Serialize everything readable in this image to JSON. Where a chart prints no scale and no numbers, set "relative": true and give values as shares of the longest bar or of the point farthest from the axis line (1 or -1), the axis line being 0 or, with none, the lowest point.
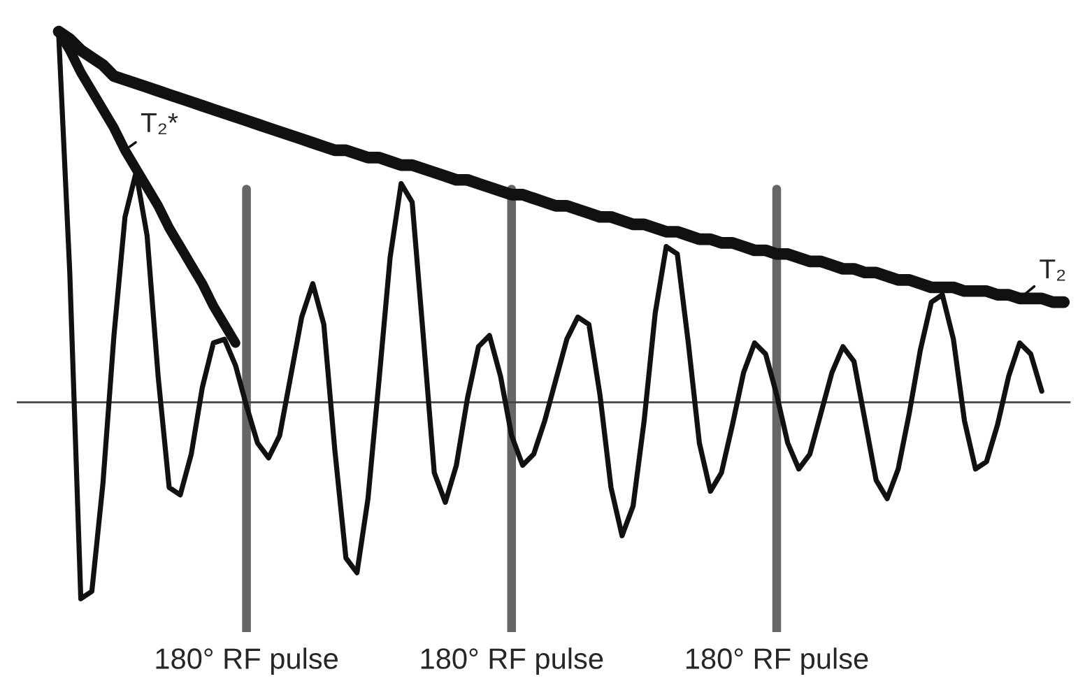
{
  "chart_data": {
    "type": "line",
    "relative": true,
    "tick_labels": "x",
    "grid": "x",
    "legend": false,
    "marker": "none",
    "line_style": "solid",
    "categories": [
      null,
      null,
      null,
      null,
      null,
      null,
      null,
      null,
      null,
      null,
      null,
      null,
      null,
      null,
      null,
      null,
      null,
      "180° RF pulse",
      null,
      null,
      null,
      null,
      null,
      null,
      null,
      null,
      null,
      null,
      null,
      null,
      null,
      null,
      null,
      null,
      null,
      null,
      null,
      null,
      null,
      null,
      null,
      "180° RF pulse",
      null,
      null,
      null,
      null,
      null,
      null,
      null,
      null,
      null,
      null,
      null,
      null,
      null,
      null,
      null,
      null,
      null,
      null,
      null,
      null,
      null,
      null,
      null,
      "180° RF pulse",
      null,
      null,
      null,
      null,
      null,
      null,
      null,
      null,
      null,
      null,
      null,
      null,
      null,
      null,
      null,
      null,
      null,
      null,
      null,
      null,
      null,
      null,
      null,
      null,
      null,
      null
    ],
    "series": [
      {
        "color": "#111111",
        "values": [
          0.99,
          0.35,
          -0.53,
          -0.51,
          -0.22,
          0.18,
          0.5,
          0.62,
          0.45,
          0.07,
          -0.23,
          -0.25,
          -0.14,
          0.04,
          0.16,
          0.17,
          0.1,
          -0.01,
          -0.11,
          -0.15,
          -0.09,
          0.07,
          0.23,
          0.32,
          0.21,
          -0.13,
          -0.42,
          -0.46,
          -0.26,
          0.06,
          0.39,
          0.59,
          0.54,
          0.18,
          -0.19,
          -0.27,
          -0.17,
          0.01,
          0.15,
          0.18,
          0.07,
          -0.09,
          -0.17,
          -0.14,
          -0.05,
          0.06,
          0.17,
          0.23,
          0.21,
          0.02,
          -0.23,
          -0.36,
          -0.28,
          -0.05,
          0.24,
          0.42,
          0.4,
          0.16,
          -0.11,
          -0.24,
          -0.19,
          -0.06,
          0.08,
          0.16,
          0.13,
          0.02,
          -0.11,
          -0.18,
          -0.14,
          -0.03,
          0.08,
          0.15,
          0.11,
          -0.05,
          -0.21,
          -0.26,
          -0.18,
          -0.03,
          0.14,
          0.27,
          0.29,
          0.17,
          -0.05,
          -0.18,
          -0.16,
          -0.06,
          0.07,
          0.16,
          0.13,
          0.03,
          null,
          null
        ]
      },
      {
        "name": "T₂",
        "color": "#111111",
        "values": [
          1.0,
          0.98,
          0.95,
          0.93,
          0.91,
          0.88,
          0.87,
          0.86,
          0.85,
          0.84,
          0.83,
          0.82,
          0.81,
          0.8,
          0.79,
          0.78,
          0.77,
          0.76,
          0.75,
          0.74,
          0.73,
          0.72,
          0.71,
          0.7,
          0.69,
          0.68,
          0.68,
          0.67,
          0.66,
          0.66,
          0.65,
          0.64,
          0.64,
          0.63,
          0.62,
          0.61,
          0.6,
          0.6,
          0.59,
          0.58,
          0.57,
          0.56,
          0.56,
          0.55,
          0.54,
          0.53,
          0.53,
          0.52,
          0.51,
          0.5,
          0.5,
          0.49,
          0.48,
          0.48,
          0.47,
          0.46,
          0.46,
          0.45,
          0.44,
          0.44,
          0.43,
          0.43,
          0.42,
          0.41,
          0.41,
          0.4,
          0.4,
          0.39,
          0.38,
          0.38,
          0.37,
          0.36,
          0.36,
          0.35,
          0.35,
          0.34,
          0.33,
          0.33,
          0.32,
          0.31,
          0.31,
          0.31,
          0.3,
          0.3,
          0.3,
          0.29,
          0.29,
          0.28,
          0.28,
          0.28,
          0.27,
          0.27
        ]
      },
      {
        "name": "T₂*",
        "color": "#111111",
        "values": [
          1.0,
          0.95,
          0.89,
          0.84,
          0.79,
          0.74,
          0.68,
          0.63,
          0.58,
          0.53,
          0.47,
          0.42,
          0.37,
          0.32,
          0.26,
          0.21,
          0.16,
          null,
          null,
          null,
          null,
          null,
          null,
          null,
          null,
          null,
          null,
          null,
          null,
          null,
          null,
          null,
          null,
          null,
          null,
          null,
          null,
          null,
          null,
          null,
          null,
          null,
          null,
          null,
          null,
          null,
          null,
          null,
          null,
          null,
          null,
          null,
          null,
          null,
          null,
          null,
          null,
          null,
          null,
          null,
          null,
          null,
          null,
          null,
          null,
          null,
          null,
          null,
          null,
          null,
          null,
          null,
          null,
          null,
          null,
          null,
          null,
          null,
          null,
          null,
          null,
          null,
          null,
          null,
          null,
          null,
          null,
          null,
          null,
          null,
          null,
          null
        ]
      }
    ]
  }
}
